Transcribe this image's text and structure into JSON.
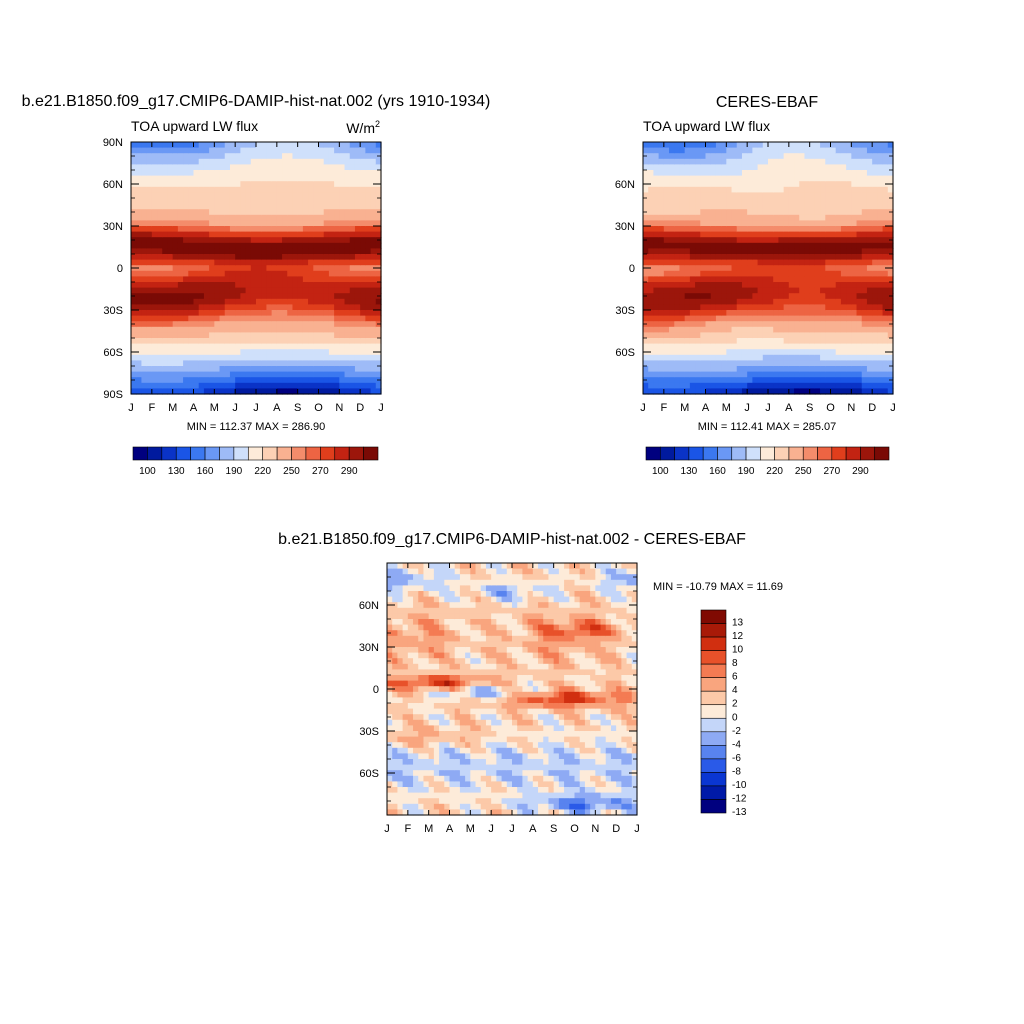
{
  "palettes": {
    "abs": [
      "#00007f",
      "#001a9e",
      "#0a33c7",
      "#1a55e6",
      "#3b78f0",
      "#6a98f5",
      "#9ebbf7",
      "#cfe0fb",
      "#fdebd9",
      "#fcd1b5",
      "#f9b191",
      "#f48c6b",
      "#ed6443",
      "#e03e1c",
      "#c32312",
      "#9c160b",
      "#7a0a05"
    ],
    "diff": [
      "#00007f",
      "#001aa8",
      "#0a36d2",
      "#2a5ae8",
      "#5883ef",
      "#8eaaf4",
      "#c4d6f9",
      "#fdebd9",
      "#fcc9a8",
      "#f9a57e",
      "#f47b53",
      "#e8512a",
      "#d12f10",
      "#a81a08",
      "#800a02"
    ]
  },
  "chart_data": [
    {
      "type": "heatmap",
      "title": "b.e21.B1850.f09_g17.CMIP6-DAMIP-hist-nat.002 (yrs 1910-1934)",
      "left_label": "TOA upward LW flux",
      "units": "W/m",
      "units_sup": "2",
      "x_ticks": [
        "J",
        "F",
        "M",
        "A",
        "M",
        "J",
        "J",
        "A",
        "S",
        "O",
        "N",
        "D",
        "J"
      ],
      "y_ticks": [
        "90N",
        "60N",
        "30N",
        "0",
        "30S",
        "60S",
        "90S"
      ],
      "stats": "MIN = 112.37 MAX = 286.90",
      "min": 112.37,
      "max": 286.9,
      "colorbar_labels": [
        "100",
        "130",
        "160",
        "190",
        "220",
        "250",
        "270",
        "290"
      ],
      "levels": [
        100,
        115,
        130,
        145,
        160,
        175,
        190,
        205,
        220,
        235,
        250,
        260,
        270,
        280,
        290,
        300
      ]
    },
    {
      "type": "heatmap",
      "title": "CERES-EBAF",
      "left_label": "TOA upward LW flux",
      "x_ticks": [
        "J",
        "F",
        "M",
        "A",
        "M",
        "J",
        "J",
        "A",
        "S",
        "O",
        "N",
        "D",
        "J"
      ],
      "y_ticks": [
        "60N",
        "30N",
        "0",
        "30S",
        "60S"
      ],
      "stats": "MIN = 112.41 MAX = 285.07",
      "min": 112.41,
      "max": 285.07,
      "colorbar_labels": [
        "100",
        "130",
        "160",
        "190",
        "220",
        "250",
        "270",
        "290"
      ],
      "levels": [
        100,
        115,
        130,
        145,
        160,
        175,
        190,
        205,
        220,
        235,
        250,
        260,
        270,
        280,
        290,
        300
      ]
    },
    {
      "type": "heatmap",
      "title": "b.e21.B1850.f09_g17.CMIP6-DAMIP-hist-nat.002 - CERES-EBAF",
      "x_ticks": [
        "J",
        "F",
        "M",
        "A",
        "M",
        "J",
        "J",
        "A",
        "S",
        "O",
        "N",
        "D",
        "J"
      ],
      "y_ticks": [
        "60N",
        "30N",
        "0",
        "30S",
        "60S"
      ],
      "stats": "MIN = -10.79 MAX =  11.69",
      "min": -10.79,
      "max": 11.69,
      "colorbar_labels": [
        "13",
        "12",
        "10",
        "8",
        "6",
        "4",
        "2",
        "0",
        "-2",
        "-4",
        "-6",
        "-8",
        "-10",
        "-12",
        "-13"
      ],
      "levels": [
        -13,
        -12,
        -10,
        -8,
        -6,
        -4,
        -2,
        0,
        2,
        4,
        6,
        8,
        10,
        12,
        13
      ]
    }
  ]
}
